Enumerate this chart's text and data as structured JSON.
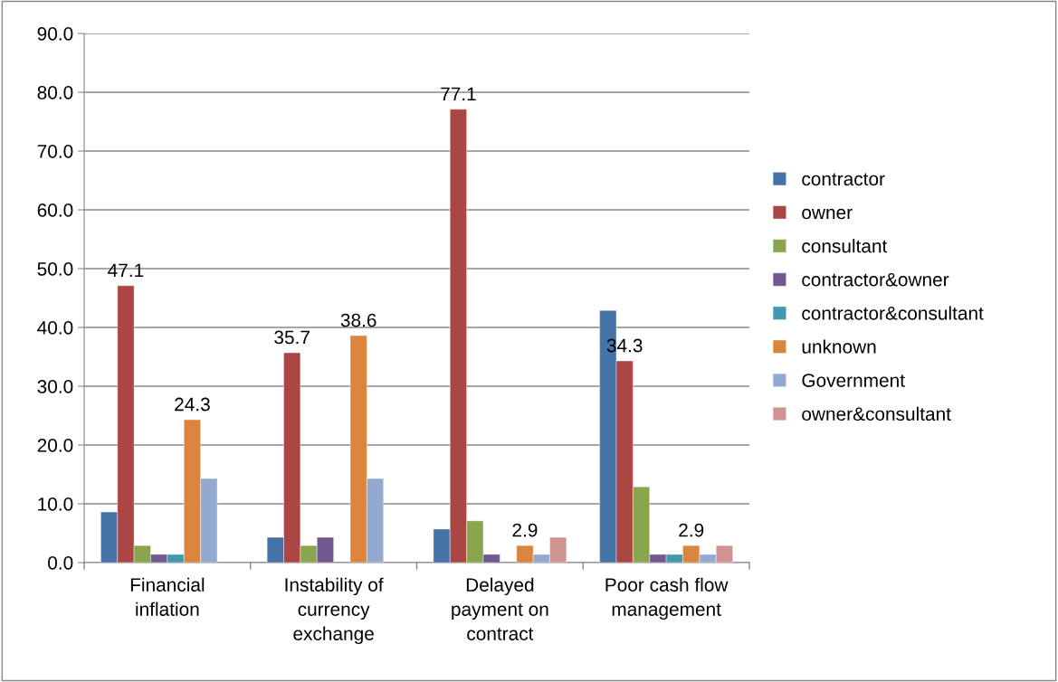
{
  "chart_data": {
    "type": "bar",
    "categories": [
      "Financial\ninflation",
      "Instability of\ncurrency\nexchange",
      "Delayed\npayment on\ncontract",
      "Poor cash flow\nmanagement"
    ],
    "series": [
      {
        "name": "contractor",
        "color": "#4572a7",
        "values": [
          8.6,
          4.3,
          5.7,
          42.9
        ]
      },
      {
        "name": "owner",
        "color": "#aa4643",
        "values": [
          47.1,
          35.7,
          77.1,
          34.3
        ],
        "value_labels": [
          "47.1",
          "35.7",
          "77.1",
          "34.3"
        ]
      },
      {
        "name": "consultant",
        "color": "#89a54e",
        "values": [
          2.9,
          2.9,
          7.1,
          12.9
        ]
      },
      {
        "name": "contractor&owner",
        "color": "#71588f",
        "values": [
          1.4,
          4.3,
          1.4,
          1.4
        ]
      },
      {
        "name": "contractor&consultant",
        "color": "#4198af",
        "values": [
          1.4,
          null,
          null,
          1.4
        ]
      },
      {
        "name": "unknown",
        "color": "#db843d",
        "values": [
          24.3,
          38.6,
          2.9,
          2.9
        ],
        "value_labels": [
          "24.3",
          "38.6",
          "2.9",
          "2.9"
        ]
      },
      {
        "name": "Government",
        "color": "#93a9cf",
        "values": [
          14.3,
          14.3,
          1.4,
          1.4
        ]
      },
      {
        "name": "owner&consultant",
        "color": "#d19392",
        "values": [
          null,
          null,
          4.3,
          2.9
        ]
      }
    ],
    "ylim": [
      0,
      90
    ],
    "yticks": [
      {
        "value": 0,
        "label": "0.0"
      },
      {
        "value": 10,
        "label": "10.0"
      },
      {
        "value": 20,
        "label": "20.0"
      },
      {
        "value": 30,
        "label": "30.0"
      },
      {
        "value": 40,
        "label": "40.0"
      },
      {
        "value": 50,
        "label": "50.0"
      },
      {
        "value": 60,
        "label": "60.0"
      },
      {
        "value": 70,
        "label": "70.0"
      },
      {
        "value": 80,
        "label": "80.0"
      },
      {
        "value": 90,
        "label": "90.0"
      }
    ],
    "grid": "y",
    "legend": "right"
  }
}
